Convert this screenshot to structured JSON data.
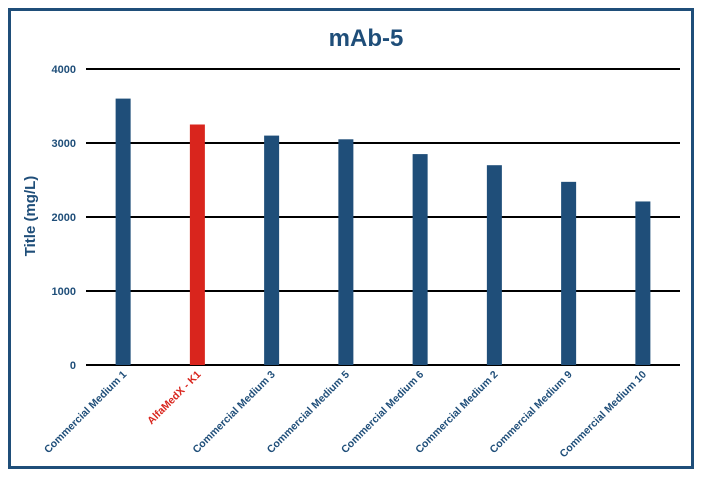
{
  "chart_data": {
    "type": "bar",
    "title": "mAb-5",
    "xlabel": "",
    "ylabel": "Title (mg/L)",
    "ylim": [
      0,
      4000
    ],
    "yticks": [
      0,
      1000,
      2000,
      3000,
      4000
    ],
    "grid": true,
    "categories": [
      "Commercial Medium 1",
      "AlfaMedX - K1",
      "Commercial Medium 3",
      "Commercial Medium 5",
      "Commercial Medium 6",
      "Commercial Medium 2",
      "Commercial Medium 9",
      "Commercial Medium 10"
    ],
    "values": [
      3600,
      3250,
      3100,
      3050,
      2850,
      2700,
      2475,
      2210
    ],
    "highlight_index": 1,
    "colors": {
      "bar": "#1f4e79",
      "highlight": "#d9251d",
      "text": "#1f4e79",
      "grid": "#000000"
    }
  }
}
